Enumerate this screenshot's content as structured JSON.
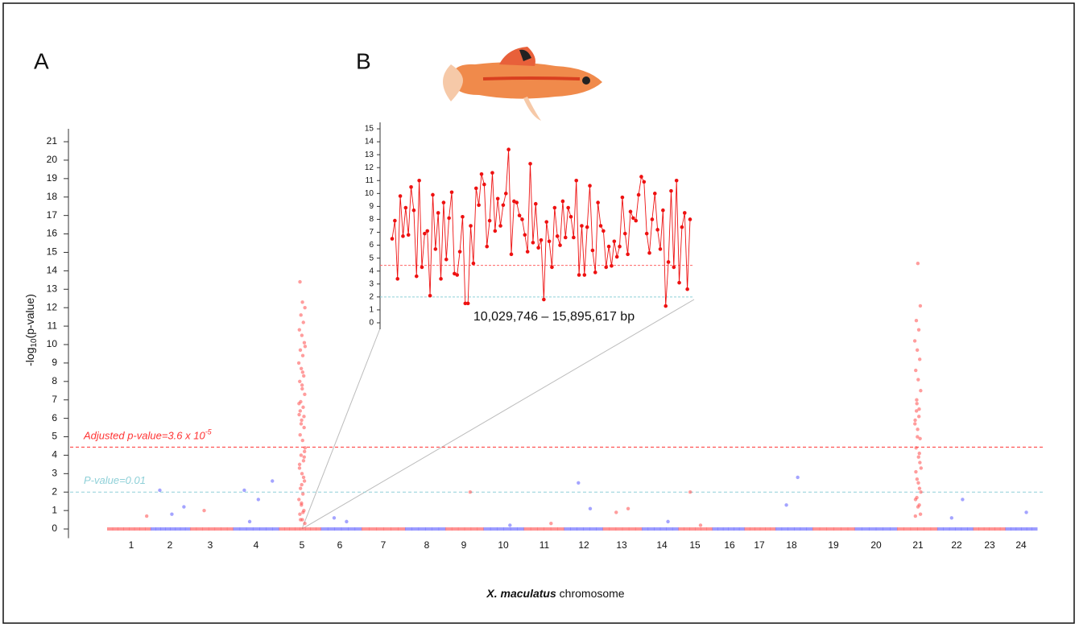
{
  "chart_data": [
    {
      "type": "manhattan",
      "panel": "A",
      "ylabel": "-log",
      "ylabel_sub": "10",
      "ylabel_end": "(p-value)",
      "xlabel_italic": "X. maculatus",
      "xlabel": " chromosome",
      "ylim": [
        -0.5,
        21.7
      ],
      "yticks": [
        0,
        1,
        2,
        3,
        4,
        5,
        6,
        7,
        8,
        9,
        10,
        11,
        12,
        13,
        14,
        15,
        16,
        17,
        18,
        19,
        20,
        21
      ],
      "thresholds": [
        {
          "value": 4.44,
          "label": "Adjusted p-value=3.6 x 10",
          "label_sup": "-5",
          "color": "#f33"
        },
        {
          "value": 2,
          "label": "P-value=0.01",
          "color": "#8fd0d8"
        }
      ],
      "chromosomes": [
        {
          "label": "1",
          "color": "#ff4d4d",
          "values": [
            0,
            0,
            0,
            0,
            0,
            0,
            0,
            0,
            0.7
          ]
        },
        {
          "label": "2",
          "color": "#5a5aff",
          "values": [
            0,
            0,
            0,
            0,
            0,
            0,
            0,
            0,
            1.2,
            0.8,
            2.1
          ]
        },
        {
          "label": "3",
          "color": "#ff4d4d",
          "values": [
            0,
            0,
            0,
            0,
            0,
            0,
            0,
            1.0
          ]
        },
        {
          "label": "4",
          "color": "#5a5aff",
          "values": [
            0,
            0,
            0,
            0,
            0,
            0,
            0,
            0.4,
            2.6,
            1.6,
            2.1
          ]
        },
        {
          "label": "5",
          "color": "#ff4d4d",
          "values": [
            0,
            0,
            0,
            0,
            0,
            0,
            0,
            0,
            0.3,
            0.5,
            0.8,
            1.0,
            1.3,
            1.6,
            1.9,
            2.2,
            2.6,
            3.0,
            3.3,
            3.7,
            4.0,
            4.4,
            4.8,
            5.1,
            5.5,
            5.9,
            6.2,
            6.6,
            6.9,
            7.3,
            7.6,
            8.0,
            8.3,
            8.7,
            9.0,
            9.4,
            9.7,
            10.1,
            10.5,
            10.8,
            11.2,
            11.6,
            12.0,
            12.3,
            13.4,
            6.1,
            1.4,
            6.8,
            0.9,
            0.5,
            4.2,
            7.8,
            3.5,
            2.8,
            5.7,
            9.9,
            8.5,
            6.4,
            3.9,
            2.4
          ]
        },
        {
          "label": "6",
          "color": "#5a5aff",
          "values": [
            0,
            0,
            0,
            0,
            0,
            0,
            0.4,
            0.6
          ]
        },
        {
          "label": "7",
          "color": "#ff4d4d",
          "values": [
            0,
            0,
            0,
            0,
            0,
            0
          ]
        },
        {
          "label": "8",
          "color": "#5a5aff",
          "values": [
            0,
            0,
            0,
            0,
            0,
            0
          ]
        },
        {
          "label": "9",
          "color": "#ff4d4d",
          "values": [
            0,
            0,
            0,
            0,
            0,
            0,
            2.0
          ]
        },
        {
          "label": "10",
          "color": "#5a5aff",
          "values": [
            0,
            0,
            0,
            0,
            0,
            0,
            0.2
          ]
        },
        {
          "label": "11",
          "color": "#ff4d4d",
          "values": [
            0,
            0,
            0,
            0,
            0,
            0,
            0.3
          ]
        },
        {
          "label": "12",
          "color": "#5a5aff",
          "values": [
            0,
            0,
            0,
            0,
            0,
            0,
            1.1,
            2.5
          ]
        },
        {
          "label": "13",
          "color": "#ff4d4d",
          "values": [
            0,
            0,
            0,
            0,
            0,
            0,
            1.1,
            0.9
          ]
        },
        {
          "label": "14",
          "color": "#5a5aff",
          "values": [
            0,
            0,
            0,
            0,
            0,
            0,
            0.4
          ]
        },
        {
          "label": "15",
          "color": "#ff4d4d",
          "values": [
            0,
            0,
            0,
            0,
            0,
            0,
            0.2,
            2.0
          ]
        },
        {
          "label": "16",
          "color": "#5a5aff",
          "values": [
            0,
            0,
            0,
            0,
            0,
            0
          ]
        },
        {
          "label": "17",
          "color": "#ff4d4d",
          "values": [
            0,
            0,
            0,
            0,
            0,
            0
          ]
        },
        {
          "label": "18",
          "color": "#5a5aff",
          "values": [
            0,
            0,
            0,
            0,
            0,
            0,
            2.8,
            1.3
          ]
        },
        {
          "label": "19",
          "color": "#ff4d4d",
          "values": [
            0,
            0,
            0,
            0,
            0,
            0
          ]
        },
        {
          "label": "20",
          "color": "#5a5aff",
          "values": [
            0,
            0,
            0,
            0,
            0,
            0
          ]
        },
        {
          "label": "21",
          "color": "#ff4d4d",
          "values": [
            0,
            0,
            0,
            0,
            0,
            0,
            1.3,
            1.7,
            2.0,
            2.5,
            3.1,
            3.6,
            5.0,
            5.7,
            6.1,
            6.4,
            0.8,
            1.2,
            1.6,
            2.2,
            2.7,
            3.3,
            3.9,
            4.4,
            4.9,
            5.4,
            5.9,
            6.5,
            7.0,
            7.5,
            8.1,
            8.6,
            9.2,
            9.7,
            10.2,
            10.8,
            11.3,
            12.1,
            14.4,
            0.7,
            4.1,
            6.8
          ]
        },
        {
          "label": "22",
          "color": "#5a5aff",
          "values": [
            0,
            0,
            0,
            0,
            0,
            0,
            1.6,
            0.6
          ]
        },
        {
          "label": "23",
          "color": "#ff4d4d",
          "values": [
            0,
            0,
            0,
            0,
            0,
            0
          ]
        },
        {
          "label": "24",
          "color": "#5a5aff",
          "values": [
            0,
            0,
            0,
            0,
            0,
            0,
            0.9
          ]
        }
      ]
    },
    {
      "type": "line",
      "panel": "B",
      "caption": "10,029,746 – 15,895,617 bp",
      "color": "#ee1111",
      "ylim": [
        -0.5,
        15.5
      ],
      "yticks": [
        0,
        1,
        2,
        3,
        4,
        5,
        6,
        7,
        8,
        9,
        10,
        11,
        12,
        13,
        14,
        15
      ],
      "thresholds": [
        {
          "value": 4.44,
          "color": "#f66"
        },
        {
          "value": 2,
          "color": "#8fd0d8"
        }
      ],
      "values": [
        6.5,
        7.9,
        3.4,
        9.8,
        6.7,
        8.9,
        6.8,
        10.5,
        8.7,
        3.6,
        11.0,
        4.3,
        6.9,
        7.1,
        2.1,
        9.9,
        5.7,
        8.5,
        3.4,
        9.3,
        4.9,
        8.1,
        10.1,
        3.8,
        3.7,
        5.5,
        8.2,
        1.5,
        1.5,
        7.5,
        4.6,
        10.4,
        9.1,
        11.5,
        10.7,
        5.9,
        7.9,
        11.6,
        7.1,
        9.6,
        7.5,
        9.1,
        10.0,
        13.4,
        5.3,
        9.4,
        9.3,
        8.3,
        8.0,
        6.8,
        5.5,
        12.3,
        6.2,
        9.2,
        5.8,
        6.4,
        1.8,
        7.8,
        6.3,
        4.3,
        8.9,
        6.7,
        6.0,
        9.4,
        6.6,
        8.9,
        8.2,
        6.6,
        11.0,
        3.7,
        7.5,
        3.7,
        7.4,
        10.6,
        5.6,
        3.9,
        9.3,
        7.5,
        7.1,
        4.3,
        5.9,
        4.4,
        6.3,
        5.1,
        5.9,
        9.7,
        6.9,
        5.3,
        8.6,
        8.1,
        7.9,
        9.9,
        11.3,
        10.9,
        6.9,
        5.4,
        8.0,
        10.0,
        7.2,
        5.7,
        8.7,
        1.3,
        4.7,
        10.2,
        4.3,
        11.0,
        3.1,
        7.4,
        8.5,
        2.6,
        8.0
      ]
    }
  ]
}
